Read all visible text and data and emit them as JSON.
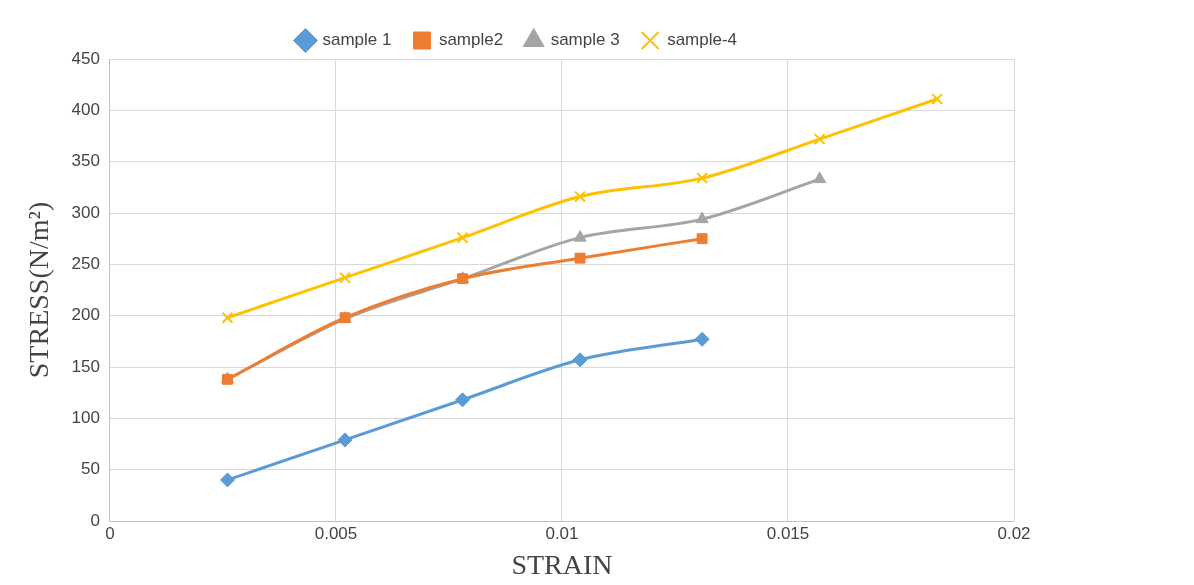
{
  "chart_data": {
    "type": "line",
    "xlabel": "STRAIN",
    "ylabel": "STRESS(N/m²)",
    "xlim": [
      0,
      0.02
    ],
    "xticks": [
      0,
      0.005,
      0.01,
      0.015,
      0.02
    ],
    "ylim": [
      0,
      450
    ],
    "yticks": [
      0,
      50,
      100,
      150,
      200,
      250,
      300,
      350,
      400,
      450
    ],
    "grid": true,
    "legend": "top",
    "series": [
      {
        "name": "sample 1",
        "color": "#5b9bd5",
        "marker": "diamond",
        "x": [
          0.0026,
          0.0052,
          0.0078,
          0.0104,
          0.0131
        ],
        "values": [
          40,
          79,
          118,
          157,
          177
        ]
      },
      {
        "name": "sample2",
        "color": "#ed7d31",
        "marker": "square",
        "x": [
          0.0026,
          0.0052,
          0.0078,
          0.0104,
          0.0131
        ],
        "values": [
          138,
          198,
          236,
          256,
          275
        ]
      },
      {
        "name": "sample 3",
        "color": "#a5a5a5",
        "marker": "triangle",
        "x": [
          0.0026,
          0.0052,
          0.0078,
          0.0104,
          0.0131,
          0.0157
        ],
        "values": [
          138,
          197,
          236,
          276,
          294,
          333
        ]
      },
      {
        "name": "sample-4",
        "color": "#ffc000",
        "marker": "cross",
        "x": [
          0.0026,
          0.0052,
          0.0078,
          0.0104,
          0.0131,
          0.0157,
          0.0183
        ],
        "values": [
          198,
          237,
          276,
          316,
          334,
          372,
          411
        ]
      }
    ]
  }
}
